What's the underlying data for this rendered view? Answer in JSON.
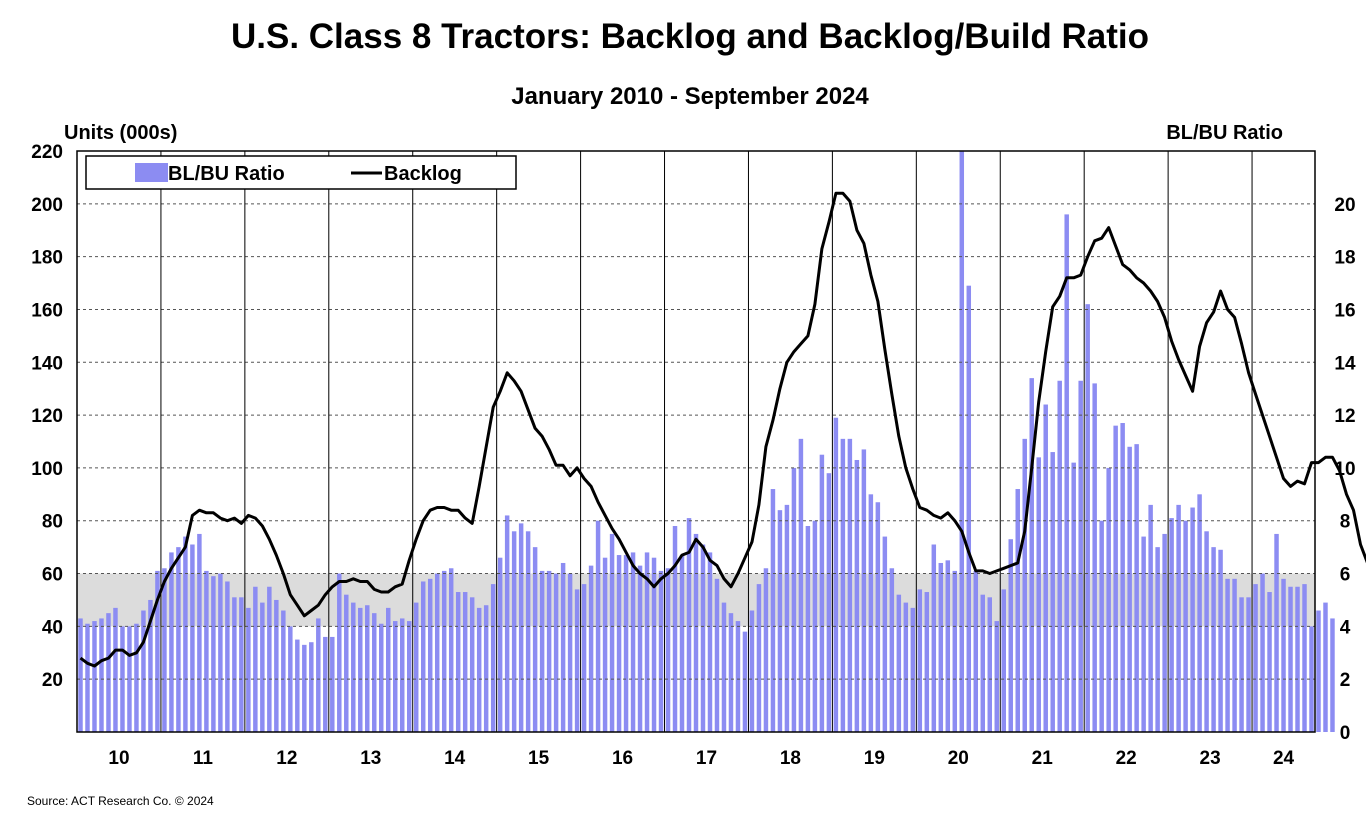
{
  "chart_data": {
    "type": "bar+line",
    "title": "U.S. Class 8 Tractors: Backlog and Backlog/Build Ratio",
    "subtitle": "January 2010 - September 2024",
    "ylabel_left": "Units (000s)",
    "ylabel_right": "BL/BU Ratio",
    "source": "Source: ACT Research Co. © 2024",
    "ylim_left": [
      0,
      220
    ],
    "ylim_right": [
      0,
      22
    ],
    "left_ticks": [
      220,
      200,
      180,
      160,
      140,
      120,
      100,
      80,
      60,
      40,
      20
    ],
    "right_ticks": [
      20,
      18,
      16,
      14,
      12,
      10,
      8,
      6,
      4,
      2,
      0
    ],
    "x_labels": [
      "10",
      "11",
      "12",
      "13",
      "14",
      "15",
      "16",
      "17",
      "18",
      "19",
      "20",
      "21",
      "22",
      "23",
      "24"
    ],
    "shaded_band_right": [
      4,
      6
    ],
    "grid": true,
    "legend_position": "top-left",
    "colors": {
      "bar": "#8c8cf2",
      "line": "#000000",
      "band": "#dcdcdc",
      "grid": "#555555"
    },
    "series": [
      {
        "name": "BL/BU Ratio",
        "kind": "bar",
        "axis": "right",
        "values": [
          4.3,
          4.1,
          4.2,
          4.3,
          4.5,
          4.7,
          4.0,
          4.0,
          4.1,
          4.6,
          5.0,
          6.1,
          6.2,
          6.8,
          7.0,
          7.4,
          7.1,
          7.5,
          6.1,
          5.9,
          6.0,
          5.7,
          5.1,
          5.1,
          4.7,
          5.5,
          4.9,
          5.5,
          5.0,
          4.6,
          4.0,
          3.5,
          3.3,
          3.4,
          4.3,
          3.6,
          3.6,
          6.0,
          5.2,
          4.9,
          4.7,
          4.8,
          4.5,
          4.1,
          4.7,
          4.2,
          4.3,
          4.2,
          4.9,
          5.7,
          5.8,
          6.0,
          6.1,
          6.2,
          5.3,
          5.3,
          5.1,
          4.7,
          4.8,
          5.6,
          6.6,
          8.2,
          7.6,
          7.9,
          7.6,
          7.0,
          6.1,
          6.1,
          6.0,
          6.4,
          6.0,
          5.4,
          5.6,
          6.3,
          8.0,
          6.6,
          7.5,
          6.7,
          6.7,
          6.8,
          6.3,
          6.8,
          6.6,
          6.1,
          6.2,
          7.8,
          6.7,
          8.1,
          7.5,
          7.1,
          6.8,
          5.8,
          4.9,
          4.5,
          4.2,
          3.8,
          4.6,
          5.6,
          6.2,
          9.2,
          8.4,
          8.6,
          10.0,
          11.1,
          7.8,
          8.0,
          10.5,
          9.8,
          11.9,
          11.1,
          11.1,
          10.3,
          10.7,
          9.0,
          8.7,
          7.4,
          6.2,
          5.2,
          4.9,
          4.7,
          5.4,
          5.3,
          7.1,
          6.4,
          6.5,
          6.1,
          22.0,
          16.9,
          6.1,
          5.2,
          5.1,
          4.2,
          5.4,
          7.3,
          9.2,
          11.1,
          13.4,
          10.4,
          12.4,
          10.6,
          13.3,
          19.6,
          10.2,
          13.3,
          16.2,
          13.2,
          8.0,
          10.0,
          11.6,
          11.7,
          10.8,
          10.9,
          7.4,
          8.6,
          7.0,
          7.5,
          8.1,
          8.6,
          8.0,
          8.5,
          9.0,
          7.6,
          7.0,
          6.9,
          5.8,
          5.8,
          5.1,
          5.1,
          5.6,
          6.0,
          5.3,
          7.5,
          5.8,
          5.5,
          5.5,
          5.6,
          4.0,
          4.6,
          4.9,
          4.3
        ]
      },
      {
        "name": "Backlog",
        "kind": "line",
        "axis": "left",
        "values": [
          28,
          26,
          25,
          27,
          28,
          31,
          31,
          29,
          30,
          34,
          42,
          50,
          57,
          62,
          66,
          70,
          82,
          84,
          83,
          83,
          81,
          80,
          81,
          79,
          82,
          81,
          78,
          73,
          67,
          60,
          52,
          48,
          44,
          46,
          48,
          52,
          55,
          57,
          57,
          58,
          57,
          57,
          54,
          53,
          53,
          55,
          56,
          65,
          73,
          80,
          84,
          85,
          85,
          84,
          84,
          81,
          79,
          93,
          108,
          123,
          129,
          136,
          133,
          129,
          122,
          115,
          112,
          107,
          101,
          101,
          97,
          100,
          96,
          93,
          87,
          82,
          77,
          73,
          68,
          63,
          60,
          58,
          55,
          58,
          60,
          63,
          67,
          68,
          73,
          70,
          65,
          63,
          58,
          55,
          60,
          66,
          72,
          86,
          108,
          118,
          130,
          140,
          144,
          147,
          150,
          162,
          183,
          193,
          204,
          204,
          201,
          190,
          185,
          173,
          163,
          145,
          128,
          112,
          100,
          92,
          85,
          84,
          82,
          81,
          83,
          80,
          76,
          68,
          61,
          61,
          60,
          61,
          62,
          63,
          64,
          76,
          100,
          125,
          144,
          161,
          165,
          172,
          172,
          173,
          180,
          186,
          187,
          191,
          184,
          177,
          175,
          172,
          170,
          167,
          163,
          157,
          148,
          141,
          135,
          129,
          146,
          155,
          159,
          167,
          160,
          157,
          147,
          136,
          128,
          120,
          112,
          104,
          96,
          93,
          95,
          94,
          102,
          102,
          104,
          104
        ]
      }
    ],
    "line_tail": [
      99,
      90,
      84,
      71,
      64,
      60,
      60
    ]
  }
}
